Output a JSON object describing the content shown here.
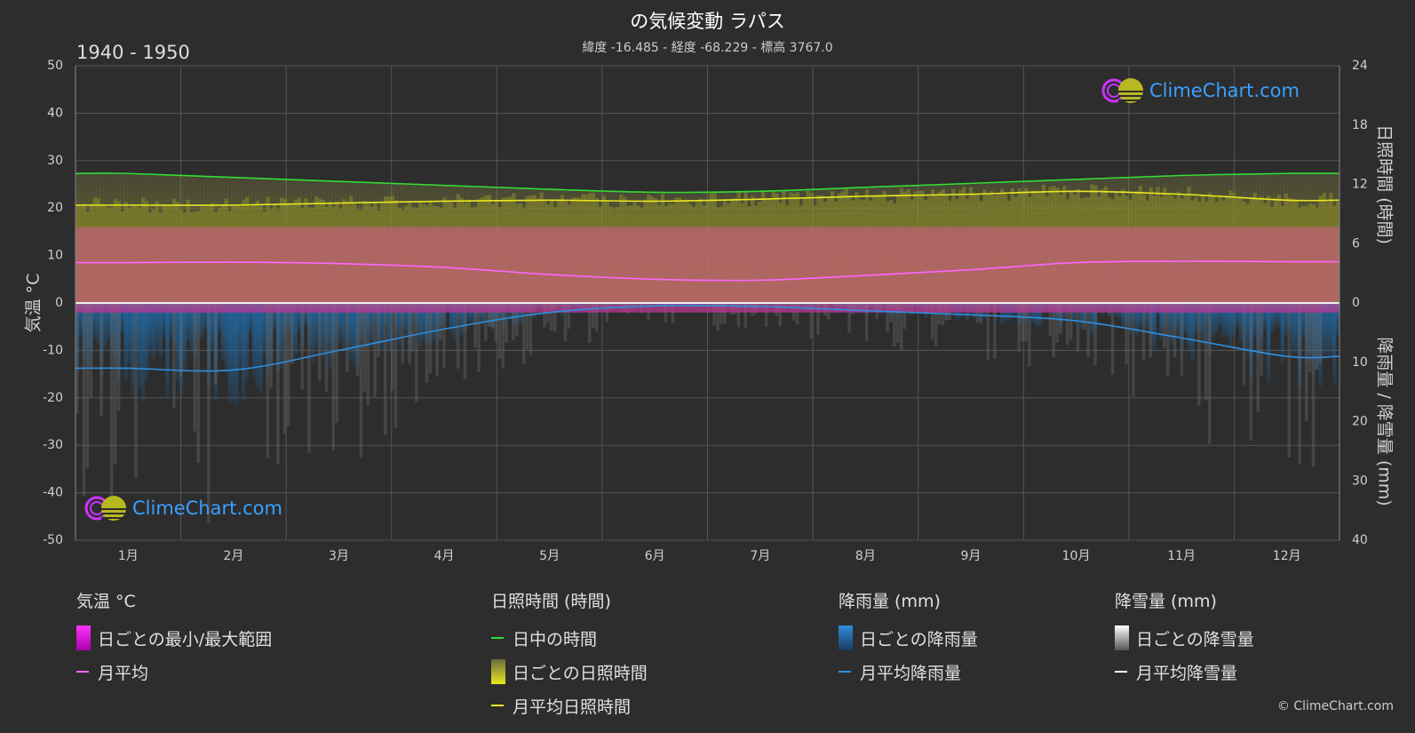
{
  "title": "の気候変動 ラパス",
  "subtitle": "緯度 -16.485 - 経度 -68.229 - 標高 3767.0",
  "period": "1940 - 1950",
  "brand": "ClimeChart.com",
  "copyright": "© ClimeChart.com",
  "chart_data": {
    "type": "line",
    "categories": [
      "1月",
      "2月",
      "3月",
      "4月",
      "5月",
      "6月",
      "7月",
      "8月",
      "9月",
      "10月",
      "11月",
      "12月"
    ],
    "left_axis": {
      "label": "気温 °C",
      "range": [
        -50,
        50
      ],
      "ticks": [
        "50",
        "40",
        "30",
        "20",
        "10",
        "0",
        "-10",
        "-20",
        "-30",
        "-40",
        "-50"
      ]
    },
    "right_axis_top": {
      "label": "日照時間 (時間)",
      "range": [
        0,
        24
      ],
      "ticks": [
        "24",
        "18",
        "12",
        "6",
        "0"
      ]
    },
    "right_axis_bottom": {
      "label": "降雨量 / 降雪量 (mm)",
      "range": [
        0,
        40
      ],
      "ticks": [
        "10",
        "20",
        "30",
        "40"
      ]
    },
    "series": [
      {
        "name": "日中の時間",
        "axis": "sunshine",
        "color": "#33dd33",
        "values": [
          13.1,
          12.7,
          12.3,
          11.9,
          11.5,
          11.2,
          11.3,
          11.7,
          12.1,
          12.5,
          12.9,
          13.1
        ]
      },
      {
        "name": "月平均日照時間",
        "axis": "sunshine",
        "color": "#e8e820",
        "values": [
          9.9,
          9.9,
          10.1,
          10.3,
          10.4,
          10.3,
          10.5,
          10.8,
          11.0,
          11.3,
          11.0,
          10.4
        ]
      },
      {
        "name": "月平均",
        "axis": "temperature",
        "color": "#ff66ff",
        "values": [
          8.5,
          8.6,
          8.3,
          7.5,
          6.0,
          5.0,
          4.8,
          5.8,
          7.0,
          8.5,
          8.8,
          8.7
        ]
      },
      {
        "name": "月平均降雨量",
        "axis": "precipitation",
        "color": "#2e8fe0",
        "values": [
          11.0,
          11.3,
          8.0,
          4.4,
          1.6,
          0.5,
          0.6,
          1.3,
          2.0,
          3.0,
          5.9,
          9.0
        ]
      },
      {
        "name": "月平均降雪量",
        "axis": "precipitation",
        "color": "#ffffff",
        "values": [
          0,
          0,
          0,
          0,
          0,
          0,
          0,
          0,
          0,
          0,
          0,
          0
        ]
      }
    ],
    "temp_band": {
      "name": "日ごとの最小/最大範囲",
      "min": -2,
      "max": 16
    },
    "grid": true
  },
  "legend": {
    "temperature": {
      "head": "気温 °C",
      "items": [
        "日ごとの最小/最大範囲",
        "月平均"
      ]
    },
    "sunshine": {
      "head": "日照時間 (時間)",
      "items": [
        "日中の時間",
        "日ごとの日照時間",
        "月平均日照時間"
      ]
    },
    "rain": {
      "head": "降雨量 (mm)",
      "items": [
        "日ごとの降雨量",
        "月平均降雨量"
      ]
    },
    "snow": {
      "head": "降雪量 (mm)",
      "items": [
        "日ごとの降雪量",
        "月平均降雪量"
      ]
    }
  }
}
